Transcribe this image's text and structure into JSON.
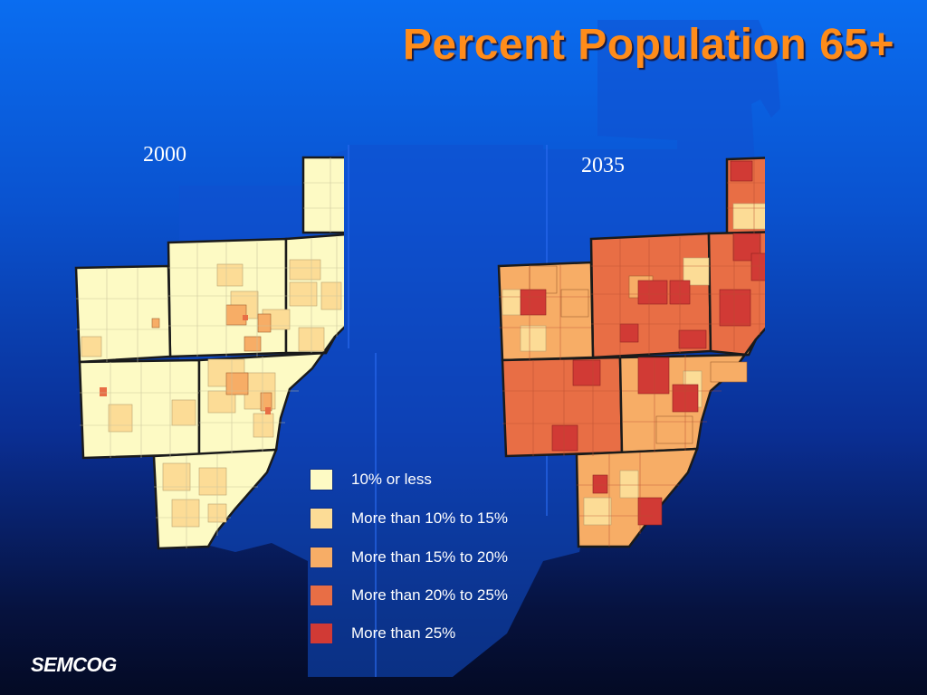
{
  "slide": {
    "title": "Percent Population 65+",
    "logo_text": "SEMCOG"
  },
  "maps": [
    {
      "id": "map-2000",
      "year": "2000"
    },
    {
      "id": "map-2035",
      "year": "2035"
    }
  ],
  "legend": [
    {
      "label": "10% or less",
      "color": "#fdfac4"
    },
    {
      "label": "More than 10% to 15%",
      "color": "#fcdc96"
    },
    {
      "label": "More than 15% to 20%",
      "color": "#f7ad66"
    },
    {
      "label": "More than 20% to 25%",
      "color": "#e86e45"
    },
    {
      "label": "More than 25%",
      "color": "#d13a35"
    }
  ],
  "colors": {
    "title": "#ff8c1a",
    "background_top": "#0a6df0",
    "background_bottom": "#040a24",
    "water": "#0b3fb5",
    "boundary": "#1a1a1a"
  }
}
